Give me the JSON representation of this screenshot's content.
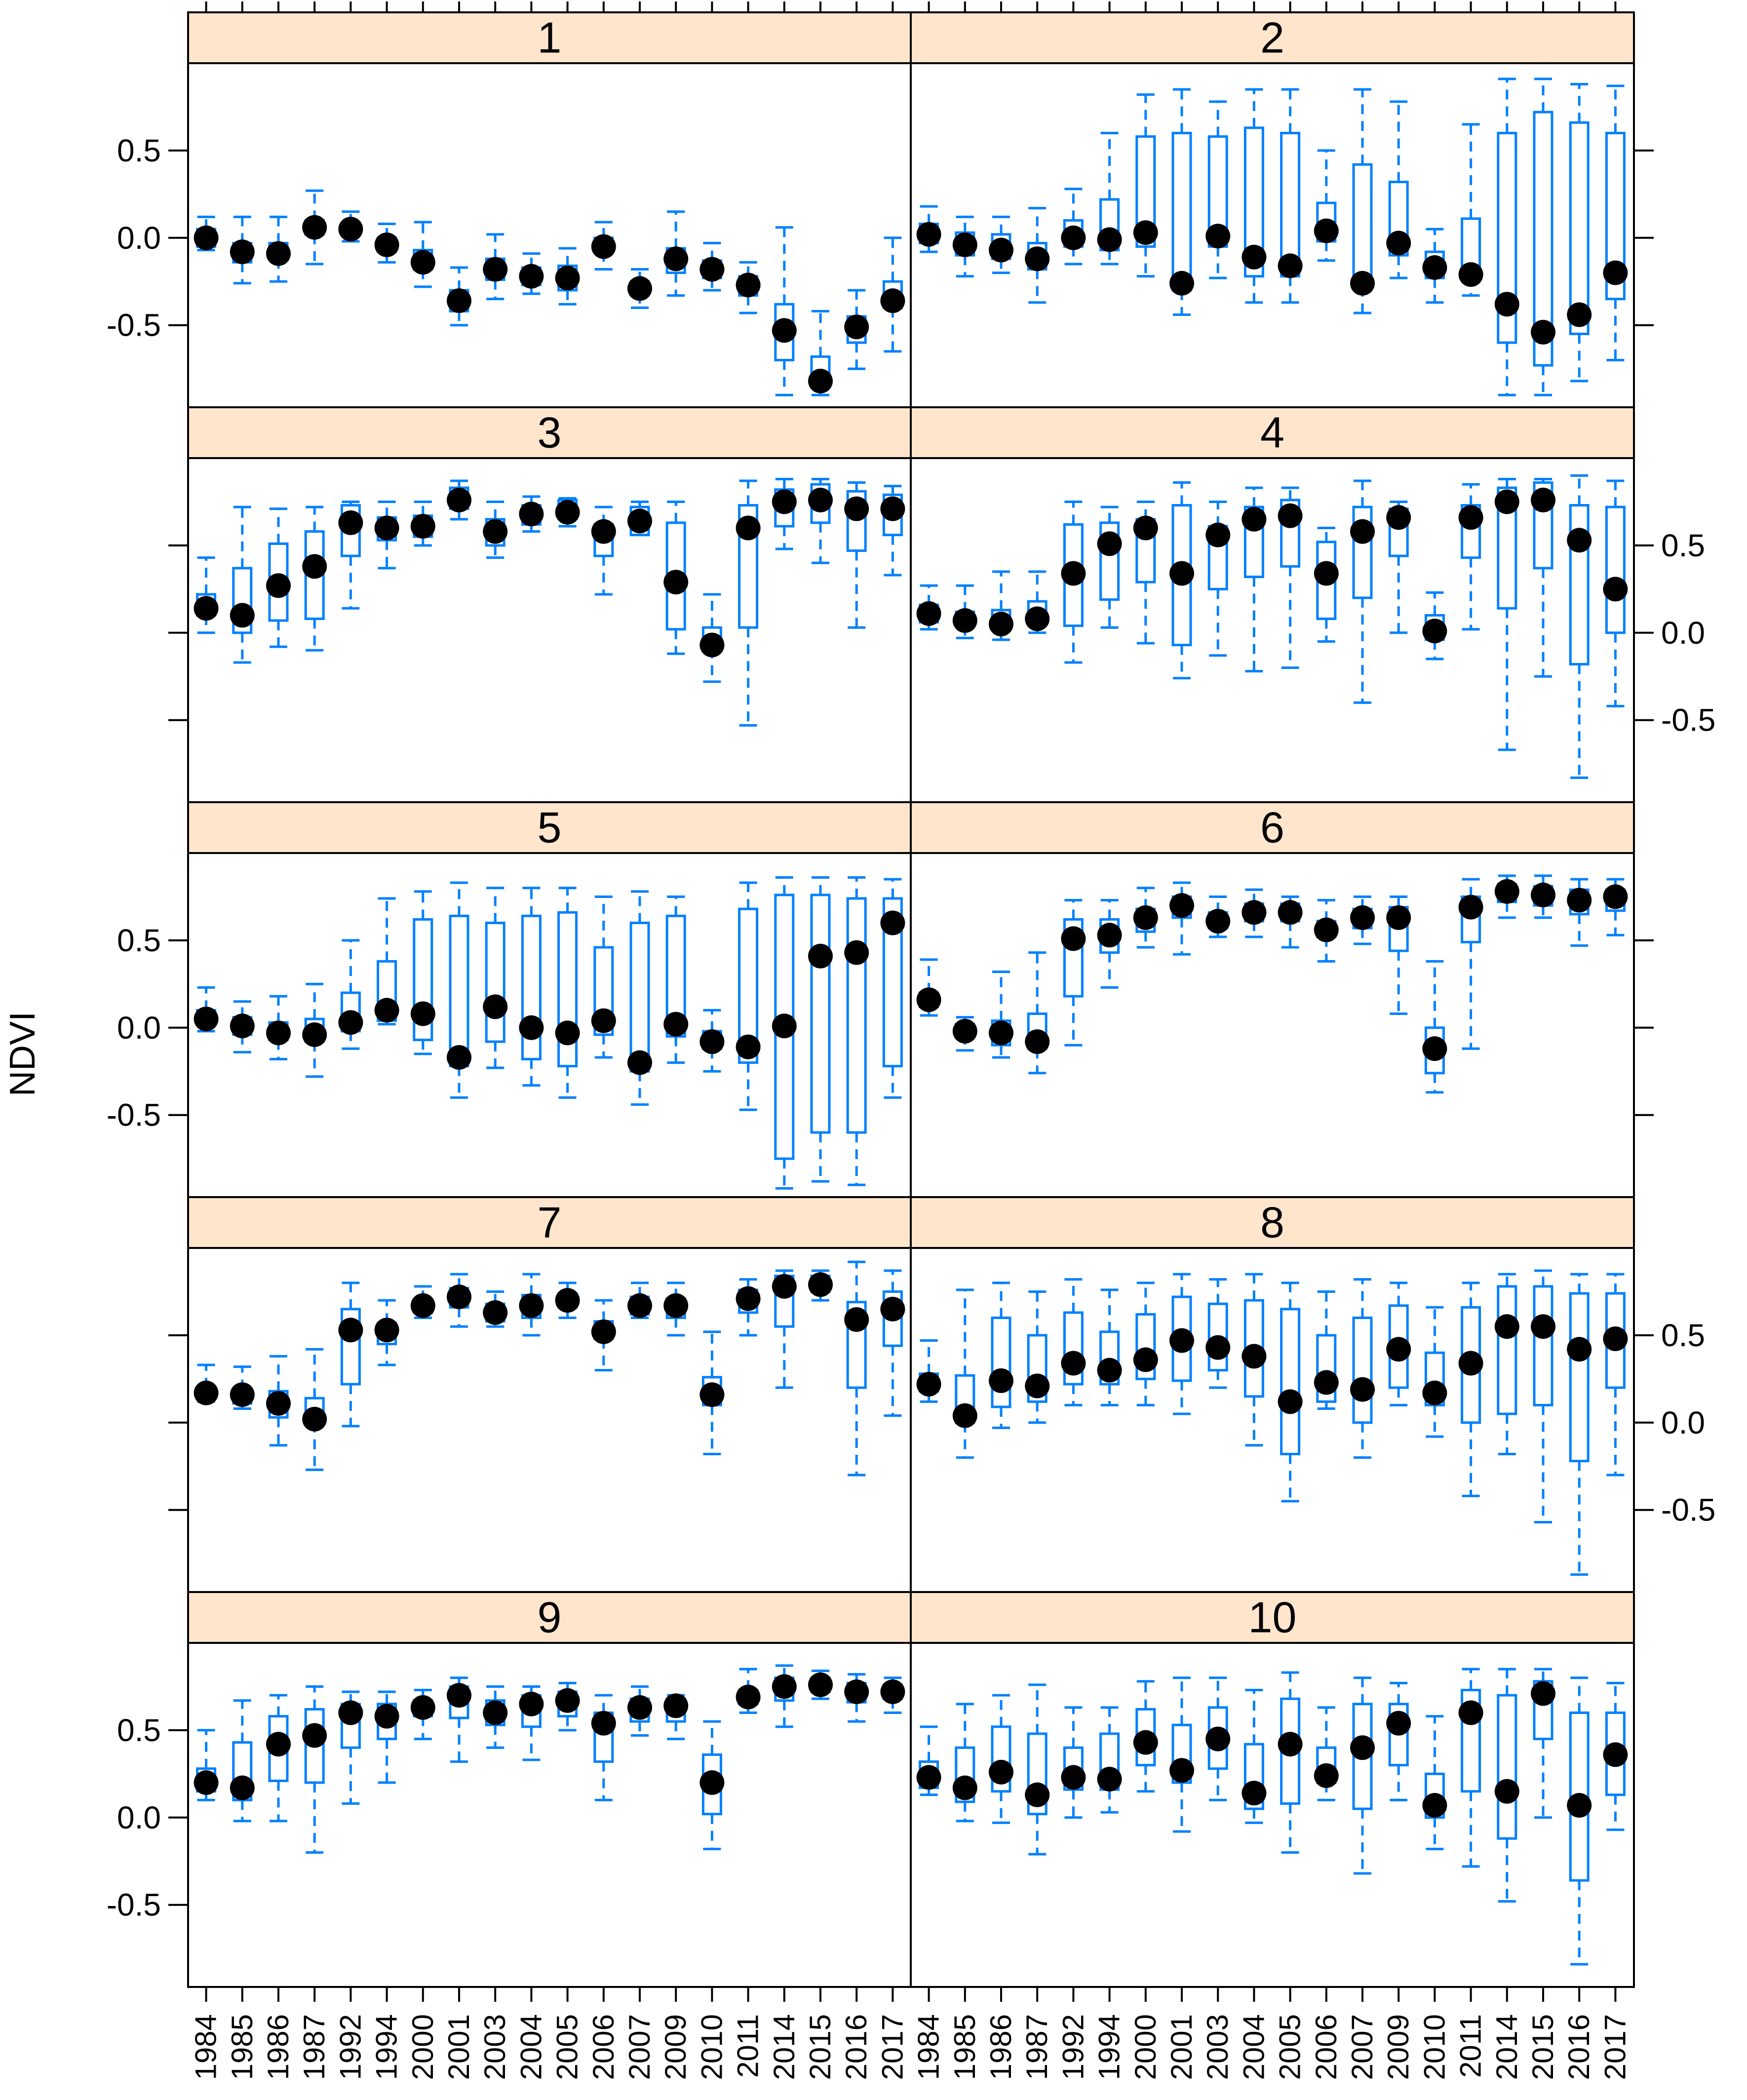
{
  "colors": {
    "strip": "#FFE5CC",
    "box": "#0080FF",
    "median": "#000000",
    "frame": "#000000"
  },
  "chart_data": {
    "type": "box",
    "ylabel": "NDVI",
    "xlabel": "",
    "ylim": [
      -0.97,
      1.0
    ],
    "y_ticks": [
      -0.5,
      0.0,
      0.5
    ],
    "y_tick_labels": [
      "-0.5",
      "0.0",
      "0.5"
    ],
    "categories": [
      "1984",
      "1985",
      "1986",
      "1987",
      "1992",
      "1994",
      "2000",
      "2001",
      "2003",
      "2004",
      "2005",
      "2006",
      "2007",
      "2009",
      "2010",
      "2011",
      "2014",
      "2015",
      "2016",
      "2017"
    ],
    "panels": [
      {
        "label": "1",
        "wl": [
          -0.07,
          -0.26,
          -0.25,
          -0.15,
          -0.02,
          -0.14,
          -0.28,
          -0.5,
          -0.35,
          -0.32,
          -0.38,
          -0.18,
          -0.4,
          -0.33,
          -0.3,
          -0.43,
          -0.9,
          -0.9,
          -0.75,
          -0.65
        ],
        "q1": [
          -0.05,
          -0.14,
          -0.12,
          0.02,
          0.02,
          -0.08,
          -0.18,
          -0.42,
          -0.24,
          -0.27,
          -0.3,
          -0.08,
          -0.32,
          -0.2,
          -0.23,
          -0.33,
          -0.7,
          -0.85,
          -0.6,
          -0.4
        ],
        "med": [
          0.0,
          -0.08,
          -0.09,
          0.06,
          0.05,
          -0.04,
          -0.14,
          -0.36,
          -0.18,
          -0.22,
          -0.23,
          -0.05,
          -0.29,
          -0.12,
          -0.18,
          -0.27,
          -0.53,
          -0.82,
          -0.51,
          -0.36
        ],
        "q3": [
          0.05,
          -0.03,
          -0.03,
          0.1,
          0.08,
          0.0,
          -0.07,
          -0.3,
          -0.12,
          -0.17,
          -0.16,
          0.0,
          -0.25,
          -0.06,
          -0.13,
          -0.22,
          -0.38,
          -0.68,
          -0.45,
          -0.25
        ],
        "wh": [
          0.12,
          0.12,
          0.12,
          0.27,
          0.15,
          0.08,
          0.09,
          -0.17,
          0.02,
          -0.09,
          -0.06,
          0.09,
          -0.18,
          0.15,
          -0.03,
          -0.14,
          0.06,
          -0.42,
          -0.3,
          0.0
        ]
      },
      {
        "label": "2",
        "wl": [
          -0.08,
          -0.22,
          -0.2,
          -0.37,
          -0.15,
          -0.15,
          -0.22,
          -0.44,
          -0.23,
          -0.37,
          -0.37,
          -0.13,
          -0.43,
          -0.23,
          -0.37,
          -0.33,
          -0.9,
          -0.9,
          -0.82,
          -0.7
        ],
        "q1": [
          -0.03,
          -0.1,
          -0.12,
          -0.18,
          -0.05,
          -0.07,
          -0.05,
          -0.3,
          -0.05,
          -0.22,
          -0.22,
          -0.02,
          -0.28,
          -0.1,
          -0.23,
          -0.22,
          -0.6,
          -0.73,
          -0.55,
          -0.35
        ],
        "med": [
          0.02,
          -0.04,
          -0.07,
          -0.12,
          0.0,
          -0.01,
          0.03,
          -0.26,
          0.01,
          -0.11,
          -0.16,
          0.04,
          -0.26,
          -0.03,
          -0.17,
          -0.21,
          -0.38,
          -0.54,
          -0.44,
          -0.2
        ],
        "q3": [
          0.08,
          0.03,
          0.02,
          -0.03,
          0.1,
          0.22,
          0.58,
          0.6,
          0.58,
          0.63,
          0.6,
          0.2,
          0.42,
          0.32,
          -0.08,
          0.11,
          0.6,
          0.72,
          0.66,
          0.6
        ],
        "wh": [
          0.18,
          0.12,
          0.12,
          0.17,
          0.28,
          0.6,
          0.82,
          0.85,
          0.78,
          0.85,
          0.85,
          0.5,
          0.85,
          0.78,
          0.05,
          0.65,
          0.91,
          0.91,
          0.88,
          0.87
        ]
      },
      {
        "label": "3",
        "wl": [
          0.0,
          -0.17,
          -0.08,
          -0.1,
          0.14,
          0.37,
          0.5,
          0.65,
          0.43,
          0.58,
          0.61,
          0.22,
          0.56,
          -0.12,
          -0.28,
          -0.53,
          0.48,
          0.4,
          0.03,
          0.33
        ],
        "q1": [
          0.1,
          0.0,
          0.07,
          0.08,
          0.44,
          0.53,
          0.55,
          0.71,
          0.5,
          0.62,
          0.66,
          0.44,
          0.56,
          0.02,
          -0.09,
          0.03,
          0.61,
          0.63,
          0.47,
          0.56
        ],
        "med": [
          0.14,
          0.1,
          0.27,
          0.38,
          0.63,
          0.6,
          0.61,
          0.76,
          0.58,
          0.68,
          0.69,
          0.58,
          0.64,
          0.29,
          -0.07,
          0.6,
          0.75,
          0.76,
          0.71,
          0.71
        ],
        "q3": [
          0.22,
          0.37,
          0.51,
          0.58,
          0.73,
          0.66,
          0.67,
          0.83,
          0.65,
          0.73,
          0.76,
          0.62,
          0.72,
          0.63,
          0.03,
          0.73,
          0.82,
          0.85,
          0.81,
          0.79
        ],
        "wh": [
          0.43,
          0.72,
          0.71,
          0.72,
          0.75,
          0.75,
          0.75,
          0.87,
          0.75,
          0.78,
          0.77,
          0.72,
          0.75,
          0.75,
          0.22,
          0.87,
          0.88,
          0.88,
          0.86,
          0.84
        ]
      },
      {
        "label": "4",
        "wl": [
          0.02,
          -0.03,
          -0.04,
          0.0,
          -0.17,
          0.03,
          -0.06,
          -0.26,
          -0.13,
          -0.22,
          -0.2,
          -0.05,
          -0.4,
          0.0,
          -0.15,
          0.02,
          -0.67,
          -0.25,
          -0.83,
          -0.42
        ],
        "q1": [
          0.06,
          0.04,
          0.02,
          0.06,
          0.04,
          0.19,
          0.29,
          -0.07,
          0.25,
          0.32,
          0.38,
          0.08,
          0.2,
          0.44,
          -0.04,
          0.43,
          0.14,
          0.37,
          -0.18,
          0.0
        ],
        "med": [
          0.11,
          0.07,
          0.05,
          0.08,
          0.34,
          0.51,
          0.6,
          0.34,
          0.56,
          0.65,
          0.67,
          0.34,
          0.58,
          0.66,
          0.01,
          0.66,
          0.75,
          0.76,
          0.53,
          0.25
        ],
        "q3": [
          0.16,
          0.12,
          0.13,
          0.18,
          0.62,
          0.63,
          0.65,
          0.73,
          0.61,
          0.72,
          0.76,
          0.52,
          0.72,
          0.71,
          0.1,
          0.73,
          0.83,
          0.86,
          0.73,
          0.72
        ],
        "wh": [
          0.27,
          0.27,
          0.35,
          0.35,
          0.75,
          0.72,
          0.75,
          0.86,
          0.75,
          0.83,
          0.83,
          0.6,
          0.87,
          0.75,
          0.23,
          0.85,
          0.88,
          0.88,
          0.9,
          0.87
        ]
      },
      {
        "label": "5",
        "wl": [
          -0.02,
          -0.14,
          -0.18,
          -0.28,
          -0.12,
          0.02,
          -0.15,
          -0.4,
          -0.23,
          -0.33,
          -0.4,
          -0.17,
          -0.44,
          -0.2,
          -0.25,
          -0.47,
          -0.92,
          -0.88,
          -0.9,
          -0.4
        ],
        "q1": [
          0.02,
          -0.04,
          -0.07,
          -0.08,
          -0.02,
          0.04,
          -0.07,
          -0.22,
          -0.08,
          -0.18,
          -0.22,
          -0.04,
          -0.25,
          -0.05,
          -0.12,
          -0.2,
          -0.75,
          -0.6,
          -0.6,
          -0.22
        ],
        "med": [
          0.05,
          0.01,
          -0.03,
          -0.04,
          0.03,
          0.1,
          0.08,
          -0.17,
          0.12,
          0.0,
          -0.03,
          0.04,
          -0.2,
          0.02,
          -0.08,
          -0.11,
          0.01,
          0.41,
          0.43,
          0.6
        ],
        "q3": [
          0.1,
          0.06,
          0.03,
          0.05,
          0.2,
          0.38,
          0.62,
          0.64,
          0.6,
          0.64,
          0.66,
          0.46,
          0.6,
          0.64,
          -0.02,
          0.68,
          0.76,
          0.76,
          0.74,
          0.74
        ],
        "wh": [
          0.23,
          0.15,
          0.18,
          0.25,
          0.5,
          0.74,
          0.78,
          0.83,
          0.8,
          0.8,
          0.8,
          0.75,
          0.78,
          0.75,
          0.1,
          0.83,
          0.86,
          0.86,
          0.86,
          0.85
        ]
      },
      {
        "label": "6",
        "wl": [
          0.07,
          -0.13,
          -0.17,
          -0.26,
          -0.1,
          0.23,
          0.46,
          0.42,
          0.52,
          0.52,
          0.46,
          0.38,
          0.48,
          0.08,
          -0.37,
          -0.12,
          0.63,
          0.63,
          0.47,
          0.53
        ],
        "q1": [
          0.12,
          -0.04,
          -0.1,
          -0.12,
          0.18,
          0.43,
          0.55,
          0.63,
          0.57,
          0.61,
          0.61,
          0.52,
          0.57,
          0.44,
          -0.26,
          0.49,
          0.72,
          0.7,
          0.65,
          0.67
        ],
        "med": [
          0.16,
          -0.02,
          -0.03,
          -0.08,
          0.51,
          0.53,
          0.63,
          0.7,
          0.61,
          0.66,
          0.66,
          0.56,
          0.63,
          0.63,
          -0.12,
          0.69,
          0.78,
          0.76,
          0.73,
          0.75
        ],
        "q3": [
          0.2,
          0.02,
          0.04,
          0.08,
          0.62,
          0.62,
          0.68,
          0.75,
          0.66,
          0.71,
          0.71,
          0.61,
          0.68,
          0.69,
          0.0,
          0.75,
          0.82,
          0.81,
          0.79,
          0.79
        ],
        "wh": [
          0.39,
          0.06,
          0.32,
          0.43,
          0.73,
          0.73,
          0.8,
          0.83,
          0.75,
          0.79,
          0.75,
          0.73,
          0.75,
          0.75,
          0.38,
          0.85,
          0.87,
          0.87,
          0.85,
          0.85
        ]
      },
      {
        "label": "7",
        "wl": [
          0.12,
          0.08,
          -0.13,
          -0.27,
          -0.02,
          0.33,
          0.6,
          0.55,
          0.55,
          0.5,
          0.6,
          0.3,
          0.6,
          0.5,
          -0.18,
          0.5,
          0.2,
          0.7,
          -0.3,
          0.04
        ],
        "q1": [
          0.14,
          0.11,
          0.03,
          0.0,
          0.22,
          0.45,
          0.63,
          0.66,
          0.58,
          0.6,
          0.66,
          0.48,
          0.62,
          0.6,
          0.1,
          0.63,
          0.55,
          0.75,
          0.2,
          0.44
        ],
        "med": [
          0.17,
          0.16,
          0.11,
          0.02,
          0.53,
          0.53,
          0.67,
          0.72,
          0.63,
          0.67,
          0.7,
          0.52,
          0.67,
          0.67,
          0.16,
          0.71,
          0.78,
          0.79,
          0.59,
          0.65
        ],
        "q3": [
          0.2,
          0.19,
          0.18,
          0.14,
          0.65,
          0.57,
          0.7,
          0.77,
          0.68,
          0.73,
          0.74,
          0.58,
          0.72,
          0.71,
          0.26,
          0.76,
          0.84,
          0.84,
          0.69,
          0.75
        ],
        "wh": [
          0.33,
          0.32,
          0.38,
          0.42,
          0.8,
          0.7,
          0.78,
          0.85,
          0.75,
          0.85,
          0.8,
          0.7,
          0.8,
          0.8,
          0.52,
          0.82,
          0.87,
          0.87,
          0.92,
          0.87
        ]
      },
      {
        "label": "8",
        "wl": [
          0.12,
          -0.2,
          -0.03,
          0.0,
          0.1,
          0.1,
          0.1,
          0.05,
          0.2,
          -0.13,
          -0.45,
          0.08,
          -0.2,
          0.1,
          -0.08,
          -0.42,
          -0.18,
          -0.57,
          -0.87,
          -0.3
        ],
        "q1": [
          0.18,
          0.0,
          0.09,
          0.12,
          0.22,
          0.22,
          0.25,
          0.24,
          0.3,
          0.15,
          -0.18,
          0.12,
          0.0,
          0.2,
          0.1,
          0.0,
          0.05,
          0.1,
          -0.22,
          0.2
        ],
        "med": [
          0.22,
          0.04,
          0.24,
          0.21,
          0.34,
          0.3,
          0.36,
          0.47,
          0.43,
          0.38,
          0.12,
          0.23,
          0.19,
          0.42,
          0.17,
          0.34,
          0.55,
          0.55,
          0.42,
          0.48
        ],
        "q3": [
          0.28,
          0.27,
          0.6,
          0.5,
          0.63,
          0.52,
          0.62,
          0.72,
          0.68,
          0.7,
          0.65,
          0.5,
          0.6,
          0.67,
          0.4,
          0.66,
          0.78,
          0.78,
          0.74,
          0.74
        ],
        "wh": [
          0.47,
          0.76,
          0.8,
          0.75,
          0.82,
          0.76,
          0.8,
          0.85,
          0.82,
          0.85,
          0.8,
          0.75,
          0.82,
          0.8,
          0.66,
          0.8,
          0.85,
          0.87,
          0.85,
          0.85
        ]
      },
      {
        "label": "9",
        "wl": [
          0.1,
          -0.02,
          -0.02,
          -0.2,
          0.08,
          0.2,
          0.45,
          0.32,
          0.4,
          0.33,
          0.5,
          0.1,
          0.47,
          0.45,
          -0.18,
          0.6,
          0.52,
          0.68,
          0.55,
          0.6
        ],
        "q1": [
          0.15,
          0.1,
          0.21,
          0.2,
          0.4,
          0.45,
          0.58,
          0.57,
          0.53,
          0.52,
          0.58,
          0.32,
          0.55,
          0.55,
          0.02,
          0.65,
          0.67,
          0.72,
          0.66,
          0.68
        ],
        "med": [
          0.2,
          0.17,
          0.42,
          0.47,
          0.6,
          0.58,
          0.63,
          0.7,
          0.6,
          0.65,
          0.67,
          0.54,
          0.63,
          0.64,
          0.2,
          0.69,
          0.75,
          0.76,
          0.72,
          0.72
        ],
        "q3": [
          0.28,
          0.43,
          0.58,
          0.62,
          0.65,
          0.65,
          0.67,
          0.75,
          0.67,
          0.7,
          0.72,
          0.6,
          0.68,
          0.68,
          0.36,
          0.73,
          0.8,
          0.8,
          0.77,
          0.76
        ],
        "wh": [
          0.5,
          0.67,
          0.7,
          0.75,
          0.72,
          0.72,
          0.73,
          0.8,
          0.75,
          0.75,
          0.77,
          0.7,
          0.75,
          0.7,
          0.55,
          0.85,
          0.87,
          0.84,
          0.82,
          0.8
        ]
      },
      {
        "label": "10",
        "wl": [
          0.13,
          -0.02,
          -0.03,
          -0.21,
          0.0,
          0.03,
          0.15,
          -0.08,
          0.1,
          -0.03,
          -0.2,
          0.1,
          -0.32,
          0.1,
          -0.18,
          -0.28,
          -0.48,
          0.0,
          -0.84,
          -0.07
        ],
        "q1": [
          0.17,
          0.09,
          0.15,
          0.02,
          0.16,
          0.16,
          0.3,
          0.2,
          0.28,
          0.05,
          0.08,
          0.2,
          0.05,
          0.3,
          0.0,
          0.15,
          -0.12,
          0.45,
          -0.36,
          0.13
        ],
        "med": [
          0.23,
          0.17,
          0.26,
          0.13,
          0.23,
          0.22,
          0.43,
          0.27,
          0.45,
          0.14,
          0.42,
          0.24,
          0.4,
          0.54,
          0.07,
          0.6,
          0.15,
          0.71,
          0.07,
          0.36
        ],
        "q3": [
          0.32,
          0.4,
          0.52,
          0.48,
          0.4,
          0.48,
          0.62,
          0.53,
          0.63,
          0.42,
          0.68,
          0.4,
          0.65,
          0.65,
          0.25,
          0.73,
          0.7,
          0.78,
          0.6,
          0.6
        ],
        "wh": [
          0.52,
          0.65,
          0.7,
          0.76,
          0.63,
          0.63,
          0.78,
          0.8,
          0.8,
          0.73,
          0.83,
          0.63,
          0.8,
          0.77,
          0.58,
          0.85,
          0.85,
          0.85,
          0.8,
          0.77
        ]
      }
    ]
  }
}
